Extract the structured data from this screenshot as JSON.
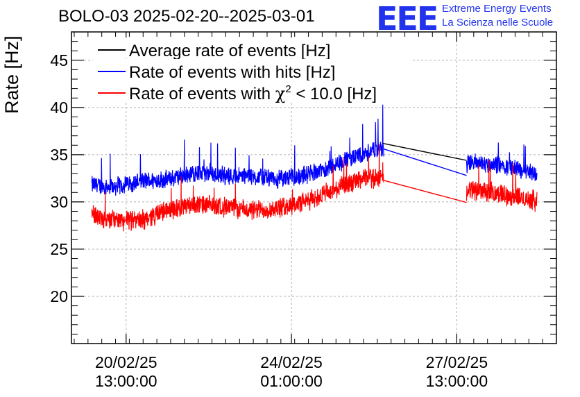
{
  "title": "BOLO-03 2025-02-20--2025-03-01",
  "logo": {
    "mark": "EEE",
    "line1": "Extreme Energy Events",
    "line2": "La Scienza nelle Scuole"
  },
  "colors": {
    "average": "#000000",
    "hits": "#0000ff",
    "chi2": "#ff0000",
    "grid": "#b0b0b0",
    "logo": "#2233ee"
  },
  "chart_data": {
    "type": "line",
    "title": "BOLO-03 2025-02-20--2025-03-01",
    "ylabel": "Rate [Hz]",
    "xlabel": "",
    "x_unit": "days since 2025-02-19 00:00",
    "xlim": [
      0.55,
      9.35
    ],
    "ylim": [
      15,
      48
    ],
    "y_ticks": [
      20,
      25,
      30,
      35,
      40,
      45
    ],
    "x_ticks": [
      {
        "x": 1.5417,
        "line1": "20/02/25",
        "line2": "13:00:00"
      },
      {
        "x": 4.5417,
        "line1": "24/02/25",
        "line2": "01:00:00"
      },
      {
        "x": 7.5417,
        "line1": "27/02/25",
        "line2": "13:00:00"
      }
    ],
    "grid": true,
    "legend": {
      "position": "top-left",
      "entries": [
        {
          "key": "average",
          "label": "Average rate of events [Hz]"
        },
        {
          "key": "hits",
          "label": "Rate of events with hits [Hz]"
        },
        {
          "key": "chi2",
          "label_pre": "Rate of events with ",
          "label_chi": "χ",
          "label_sup": "2",
          "label_post": " < 10.0 [Hz]"
        }
      ]
    },
    "series": [
      {
        "name": "Rate of events with hits [Hz]",
        "key": "hits",
        "x": [
          0.92,
          1.3,
          1.8,
          2.3,
          2.8,
          3.3,
          3.8,
          4.3,
          4.8,
          5.3,
          5.8,
          6.1,
          6.25,
          6.7,
          7.2,
          7.6,
          7.8,
          8.3,
          8.8,
          9.0
        ],
        "y": [
          31.8,
          31.6,
          32.2,
          32.4,
          33.1,
          32.8,
          32.7,
          32.4,
          32.9,
          33.8,
          35.0,
          35.6,
          35.6,
          34.0,
          33.6,
          33.2,
          34.2,
          33.9,
          33.3,
          33.0
        ],
        "noise": 1.1,
        "spikes": [
          {
            "x": 6.2,
            "y": 40.3
          },
          {
            "x": 2.6,
            "y": 36.6
          },
          {
            "x": 3.2,
            "y": 36.2
          },
          {
            "x": 4.6,
            "y": 36.0
          },
          {
            "x": 5.6,
            "y": 36.8
          }
        ]
      },
      {
        "name": "Rate of events with χ2 < 10.0 [Hz]",
        "key": "chi2",
        "x": [
          0.92,
          1.3,
          1.8,
          2.3,
          2.8,
          3.3,
          3.8,
          4.3,
          4.8,
          5.3,
          5.8,
          6.1,
          6.25,
          6.7,
          7.2,
          7.6,
          7.8,
          8.3,
          8.8,
          9.0
        ],
        "y": [
          28.6,
          28.1,
          28.0,
          29.2,
          29.7,
          29.5,
          29.1,
          29.3,
          30.0,
          31.2,
          32.4,
          32.6,
          32.2,
          31.6,
          30.8,
          30.4,
          31.3,
          30.9,
          30.3,
          30.1
        ],
        "noise": 1.2,
        "spikes": [
          {
            "x": 6.2,
            "y": 34.2
          },
          {
            "x": 5.3,
            "y": 33.8
          }
        ]
      },
      {
        "name": "Average rate of events [Hz]",
        "key": "average",
        "x": [
          6.2,
          7.72
        ],
        "y": [
          36.2,
          34.4
        ]
      }
    ],
    "gap": [
      6.22,
      7.72
    ]
  }
}
